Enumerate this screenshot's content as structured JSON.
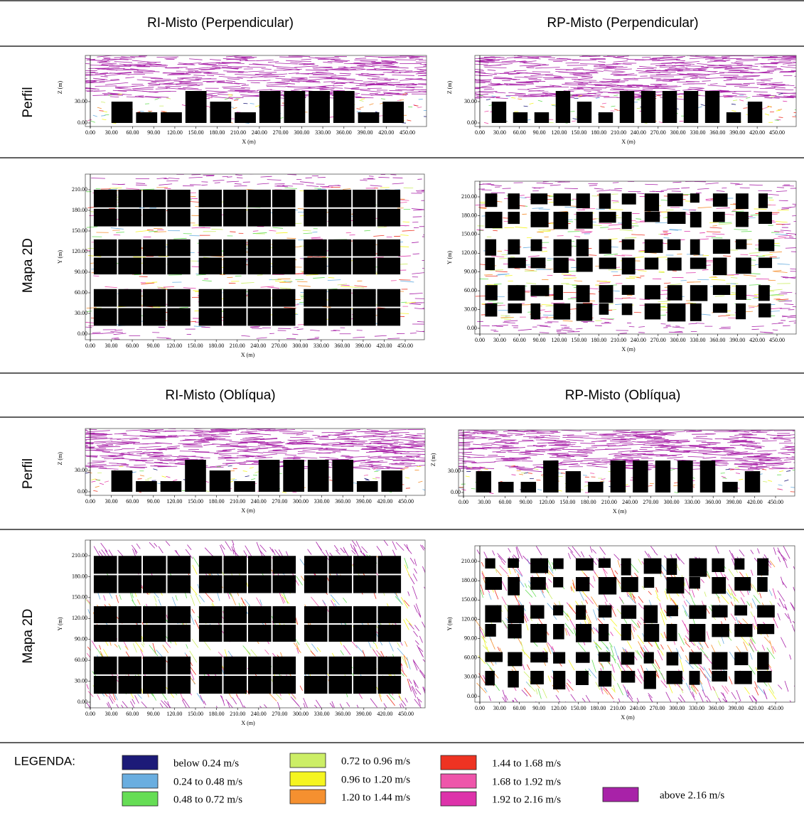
{
  "sections": [
    {
      "titles": [
        "RI-Misto (Perpendicular)",
        "RP-Misto (Perpendicular)"
      ],
      "rows": [
        {
          "label": "Perfil",
          "panels": [
            {
              "x_label": "X (m)",
              "y_label": "Z (m)",
              "xticks": [
                "0.00",
                "30.00",
                "60.00",
                "90.00",
                "120.00",
                "150.00",
                "180.00",
                "210.00",
                "240.00",
                "270.00",
                "300.00",
                "330.00",
                "360.00",
                "390.00",
                "420.00",
                "450.00"
              ],
              "yticks": [
                "0.00",
                "30.00"
              ]
            },
            {
              "x_label": "X (m)",
              "y_label": "Z (m)",
              "xticks": [
                "0.00",
                "30.00",
                "60.00",
                "90.00",
                "120.00",
                "150.00",
                "180.00",
                "210.00",
                "240.00",
                "270.00",
                "300.00",
                "330.00",
                "360.00",
                "390.00",
                "420.00",
                "450.00"
              ],
              "yticks": [
                "0.00",
                "30.00"
              ]
            }
          ]
        },
        {
          "label": "Mapa 2D",
          "panels": [
            {
              "x_label": "X (m)",
              "y_label": "Y (m)",
              "xticks": [
                "0.00",
                "30.00",
                "60.00",
                "90.00",
                "120.00",
                "150.00",
                "180.00",
                "210.00",
                "240.00",
                "270.00",
                "300.00",
                "330.00",
                "360.00",
                "390.00",
                "420.00",
                "450.00"
              ],
              "yticks": [
                "0.00",
                "30.00",
                "60.00",
                "90.00",
                "120.00",
                "150.00",
                "180.00",
                "210.00"
              ]
            },
            {
              "x_label": "X (m)",
              "y_label": "Y (m)",
              "xticks": [
                "0.00",
                "30.00",
                "60.00",
                "90.00",
                "120.00",
                "150.00",
                "180.00",
                "210.00",
                "240.00",
                "270.00",
                "300.00",
                "330.00",
                "360.00",
                "390.00",
                "420.00",
                "450.00"
              ],
              "yticks": [
                "0.00",
                "30.00",
                "60.00",
                "90.00",
                "120.00",
                "150.00",
                "180.00",
                "210.00"
              ]
            }
          ]
        }
      ]
    },
    {
      "titles": [
        "RI-Misto (Oblíqua)",
        "RP-Misto (Oblíqua)"
      ],
      "rows": [
        {
          "label": "Perfil",
          "panels": [
            {
              "x_label": "X (m)",
              "y_label": "Z (m)",
              "xticks": [
                "0.00",
                "30.00",
                "60.00",
                "90.00",
                "120.00",
                "150.00",
                "180.00",
                "210.00",
                "240.00",
                "270.00",
                "300.00",
                "330.00",
                "360.00",
                "390.00",
                "420.00",
                "450.00"
              ],
              "yticks": [
                "0.00",
                "30.00"
              ]
            },
            {
              "x_label": "X (m)",
              "y_label": "Z (m)",
              "xticks": [
                "0.00",
                "30.00",
                "60.00",
                "90.00",
                "120.00",
                "150.00",
                "180.00",
                "210.00",
                "240.00",
                "270.00",
                "300.00",
                "330.00",
                "360.00",
                "390.00",
                "420.00",
                "450.00"
              ],
              "yticks": [
                "0.00",
                "30.00"
              ]
            }
          ]
        },
        {
          "label": "Mapa 2D",
          "panels": [
            {
              "x_label": "X (m)",
              "y_label": "Y (m)",
              "xticks": [
                "0.00",
                "30.00",
                "60.00",
                "90.00",
                "120.00",
                "150.00",
                "180.00",
                "210.00",
                "240.00",
                "270.00",
                "300.00",
                "330.00",
                "360.00",
                "390.00",
                "420.00",
                "450.00"
              ],
              "yticks": [
                "0.00",
                "30.00",
                "60.00",
                "90.00",
                "120.00",
                "150.00",
                "180.00",
                "210.00"
              ]
            },
            {
              "x_label": "X (m)",
              "y_label": "Y (m)",
              "xticks": [
                "0.00",
                "30.00",
                "60.00",
                "90.00",
                "120.00",
                "150.00",
                "180.00",
                "210.00",
                "240.00",
                "270.00",
                "300.00",
                "330.00",
                "360.00",
                "390.00",
                "420.00",
                "450.00"
              ],
              "yticks": [
                "0.00",
                "30.00",
                "60.00",
                "90.00",
                "120.00",
                "150.00",
                "180.00",
                "210.00"
              ]
            }
          ]
        }
      ]
    }
  ],
  "legend": {
    "title": "LEGENDA:",
    "items": [
      {
        "label": "below 0.24 m/s",
        "color": "#1c1a78"
      },
      {
        "label": "0.24 to 0.48 m/s",
        "color": "#6aaee0"
      },
      {
        "label": "0.48 to 0.72 m/s",
        "color": "#66dd55"
      },
      {
        "label": "0.72 to 0.96 m/s",
        "color": "#ccee66"
      },
      {
        "label": "0.96 to 1.20 m/s",
        "color": "#f5f520"
      },
      {
        "label": "1.20 to 1.44 m/s",
        "color": "#f59030"
      },
      {
        "label": "1.44 to 1.68 m/s",
        "color": "#ee3322"
      },
      {
        "label": "1.68 to 1.92 m/s",
        "color": "#ee55aa"
      },
      {
        "label": "1.92 to 2.16 m/s",
        "color": "#dd33aa"
      },
      {
        "label": "above 2.16 m/s",
        "color": "#a822a8"
      }
    ]
  }
}
